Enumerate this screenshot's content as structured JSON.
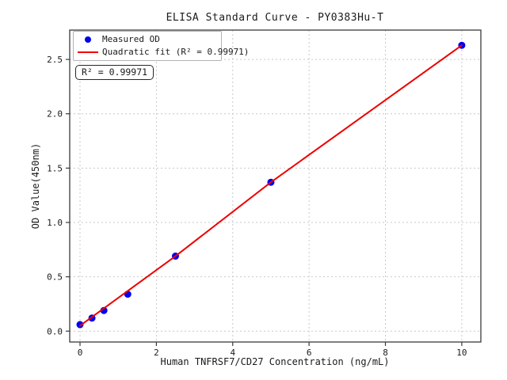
{
  "figure": {
    "title": "ELISA Standard Curve - PY0383Hu-T"
  },
  "axes": {
    "xlabel": "Human TNFRSF7/CD27 Concentration (ng/mL)",
    "ylabel": "OD Value(450nm)"
  },
  "legend": {
    "items": [
      {
        "label": "Measured OD",
        "marker": "dot",
        "color": "#0000ee"
      },
      {
        "label": "Quadratic fit (R² = 0.99971)",
        "marker": "line",
        "color": "#ee0000"
      }
    ]
  },
  "annotation": {
    "text": "R² = 0.99971"
  },
  "chart_data": {
    "type": "scatter",
    "title": "ELISA Standard Curve - PY0383Hu-T",
    "xlabel": "Human TNFRSF7/CD27 Concentration (ng/mL)",
    "ylabel": "OD Value(450nm)",
    "series": [
      {
        "name": "Measured OD",
        "type": "scatter",
        "color": "#0000ee",
        "marker_radius": 4.5,
        "x": [
          0,
          0.313,
          0.625,
          1.25,
          2.5,
          5,
          10
        ],
        "y": [
          0.06,
          0.12,
          0.19,
          0.34,
          0.69,
          1.37,
          2.63
        ]
      },
      {
        "name": "Quadratic fit (R² = 0.99971)",
        "type": "line",
        "color": "#ee0000",
        "line_width": 2,
        "x": [
          0,
          2.5,
          5,
          10
        ],
        "y": [
          0.05,
          0.69,
          1.37,
          2.63
        ]
      }
    ],
    "r_squared": 0.99971,
    "x_ticks": [
      0,
      2,
      4,
      6,
      8,
      10
    ],
    "y_ticks": [
      0.0,
      0.5,
      1.0,
      1.5,
      2.0,
      2.5
    ],
    "x_tick_labels": [
      "0",
      "2",
      "4",
      "6",
      "8",
      "10"
    ],
    "y_tick_labels": [
      "0.0",
      "0.5",
      "1.0",
      "1.5",
      "2.0",
      "2.5"
    ],
    "xlim": [
      -0.27,
      10.5
    ],
    "ylim": [
      -0.1,
      2.77
    ],
    "grid": true,
    "grid_color": "#c9c9c9",
    "spine_color": "#3a3a3a",
    "legend_position": "upper left"
  }
}
